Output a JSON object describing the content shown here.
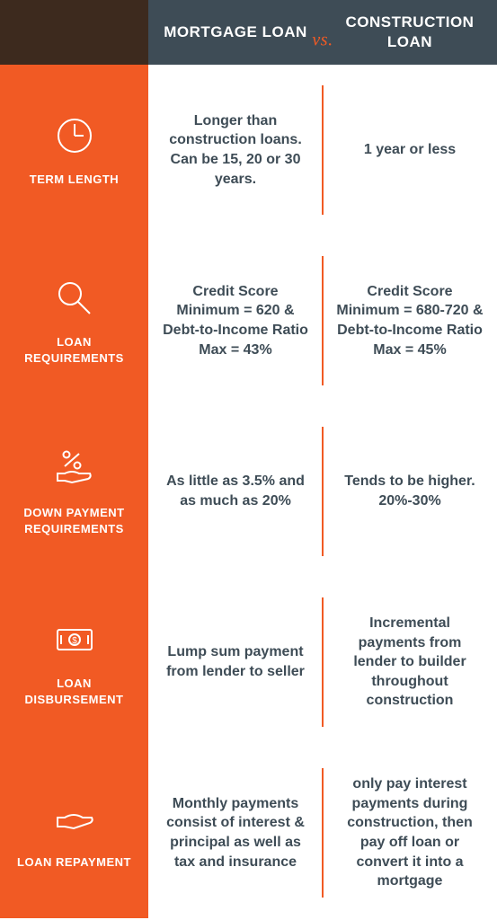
{
  "colors": {
    "orange": "#f15a24",
    "dark_header": "#3e4c56",
    "dark_corner": "#3d2a1e",
    "text": "#3e4c56",
    "white": "#ffffff"
  },
  "header": {
    "col1": "MORTGAGE LOAN",
    "vs": "vs.",
    "col2": "CONSTRUCTION LOAN"
  },
  "rows": [
    {
      "icon": "clock",
      "label": "TERM LENGTH",
      "mortgage": "Longer than construction loans. Can be 15, 20 or 30 years.",
      "construction": "1 year or less"
    },
    {
      "icon": "magnifier",
      "label": "LOAN REQUIREMENTS",
      "mortgage": "Credit Score Minimum = 620 & Debt-to-Income Ratio Max = 43%",
      "construction": "Credit Score Minimum = 680-720 & Debt-to-Income Ratio Max = 45%"
    },
    {
      "icon": "percent-hand",
      "label": "DOWN PAYMENT REQUIREMENTS",
      "mortgage": "As little as 3.5% and as much as 20%",
      "construction": "Tends to be higher. 20%-30%"
    },
    {
      "icon": "money",
      "label": "LOAN DISBURSEMENT",
      "mortgage": "Lump sum payment from lender to seller",
      "construction": "Incremental payments from lender to builder throughout construction"
    },
    {
      "icon": "hand",
      "label": "LOAN REPAYMENT",
      "mortgage": "Monthly payments consist of interest & principal as well as tax and insurance",
      "construction": "only pay interest payments during construction, then pay off loan or convert it into a mortgage"
    }
  ]
}
